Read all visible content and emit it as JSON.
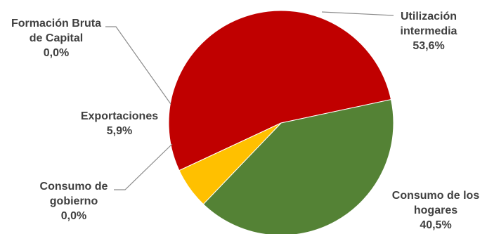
{
  "chart_data": {
    "type": "pie",
    "title": "",
    "slices": [
      {
        "name": "Utilización intermedia",
        "label_lines": [
          "Utilización",
          "intermedia"
        ],
        "value": 53.6,
        "value_label": "53,6%",
        "color": "#c00000"
      },
      {
        "name": "Consumo de los hogares",
        "label_lines": [
          "Consumo de los",
          "hogares"
        ],
        "value": 40.5,
        "value_label": "40,5%",
        "color": "#548235"
      },
      {
        "name": "Consumo de gobierno",
        "label_lines": [
          "Consumo de",
          "gobierno"
        ],
        "value": 0.0,
        "value_label": "0,0%",
        "color": "#7f7f7f"
      },
      {
        "name": "Exportaciones",
        "label_lines": [
          "Exportaciones"
        ],
        "value": 5.9,
        "value_label": "5,9%",
        "color": "#ffc000"
      },
      {
        "name": "Formación Bruta de Capital",
        "label_lines": [
          "Formación Bruta",
          "de Capital"
        ],
        "value": 0.0,
        "value_label": "0,0%",
        "color": "#7f7f7f"
      }
    ],
    "legend": "none"
  }
}
